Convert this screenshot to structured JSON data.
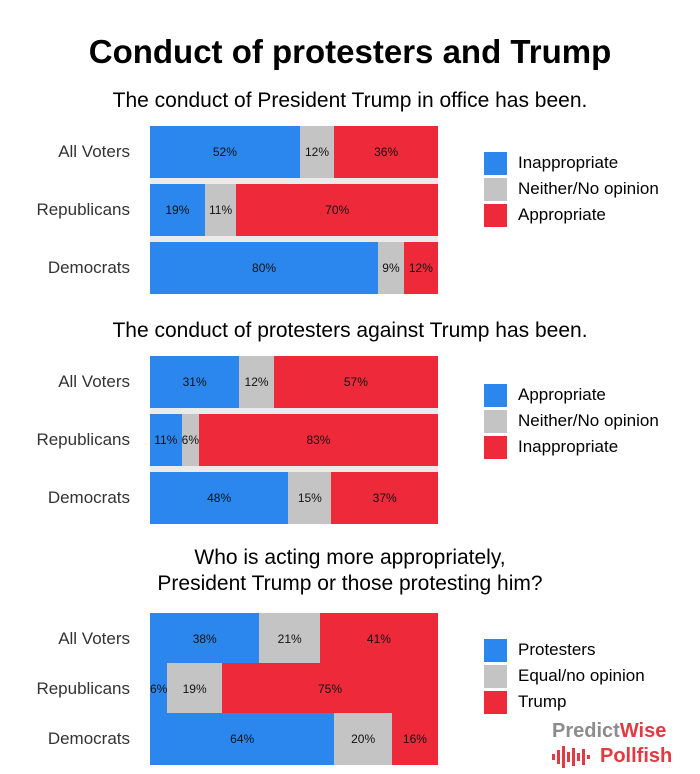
{
  "title": "Conduct of protesters and Trump",
  "colors": {
    "blue": "#2b87ee",
    "gray": "#c4c4c4",
    "red": "#ee2a3a"
  },
  "chart_data": [
    {
      "type": "bar",
      "orientation": "horizontal",
      "stacked": true,
      "title": "The conduct of President Trump in office has been.",
      "categories": [
        "All Voters",
        "Republicans",
        "Democrats"
      ],
      "series": [
        {
          "name": "Inappropriate",
          "color": "#2b87ee",
          "values": [
            52,
            19,
            80
          ],
          "labels": [
            "52%",
            "19%",
            "80%"
          ]
        },
        {
          "name": "Neither/No opinion",
          "color": "#c4c4c4",
          "values": [
            12,
            11,
            9
          ],
          "labels": [
            "12%",
            "11%",
            "9%"
          ]
        },
        {
          "name": "Appropriate",
          "color": "#ee2a3a",
          "values": [
            36,
            70,
            12
          ],
          "labels": [
            "36%",
            "70%",
            "12%"
          ]
        }
      ]
    },
    {
      "type": "bar",
      "orientation": "horizontal",
      "stacked": true,
      "title": "The conduct of protesters against Trump has been.",
      "categories": [
        "All Voters",
        "Republicans",
        "Democrats"
      ],
      "series": [
        {
          "name": "Appropriate",
          "color": "#2b87ee",
          "values": [
            31,
            11,
            48
          ],
          "labels": [
            "31%",
            "11%",
            "48%"
          ]
        },
        {
          "name": "Neither/No opinion",
          "color": "#c4c4c4",
          "values": [
            12,
            6,
            15
          ],
          "labels": [
            "12%",
            "6%",
            "15%"
          ]
        },
        {
          "name": "Inappropriate",
          "color": "#ee2a3a",
          "values": [
            57,
            83,
            37
          ],
          "labels": [
            "57%",
            "83%",
            "37%"
          ]
        }
      ]
    },
    {
      "type": "bar",
      "orientation": "horizontal",
      "stacked": true,
      "title": "Who is acting more appropriately,\nPresident Trump or those protesting him?",
      "categories": [
        "All Voters",
        "Republicans",
        "Democrats"
      ],
      "series": [
        {
          "name": "Protesters",
          "color": "#2b87ee",
          "values": [
            38,
            6,
            64
          ],
          "labels": [
            "38%",
            "6%",
            "64%"
          ]
        },
        {
          "name": "Equal/no opinion",
          "color": "#c4c4c4",
          "values": [
            21,
            19,
            20
          ],
          "labels": [
            "21%",
            "19%",
            "20%"
          ]
        },
        {
          "name": "Trump",
          "color": "#ee2a3a",
          "values": [
            41,
            75,
            16
          ],
          "labels": [
            "41%",
            "75%",
            "16%"
          ]
        }
      ]
    }
  ],
  "logo": {
    "word1a": "Predict",
    "word1b": "Wise",
    "word2": "Pollfish"
  }
}
